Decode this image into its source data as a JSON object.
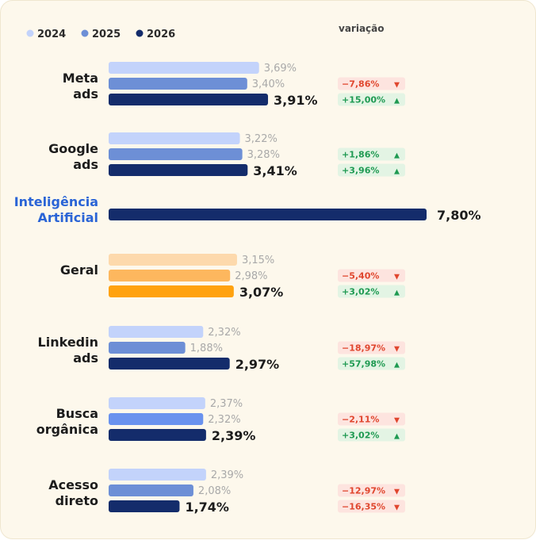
{
  "chart_data": {
    "type": "bar",
    "orientation": "horizontal",
    "legend_position": "top-left",
    "variation_header": "variação",
    "series": [
      {
        "name": "2024",
        "color": "#c3d3fb"
      },
      {
        "name": "2025",
        "color": "#6d8fd6"
      },
      {
        "name": "2026",
        "color": "#142c6b"
      }
    ],
    "groups": [
      {
        "label": [
          "Meta",
          "ads"
        ],
        "values": [
          3.69,
          3.4,
          3.91
        ],
        "value_labels": [
          "3,69%",
          "3,40%",
          "3,91%"
        ],
        "colors": [
          "#c3d3fb",
          "#6d8fd6",
          "#142c6b"
        ],
        "variations": [
          {
            "text": "−7,86%",
            "dir": "down"
          },
          {
            "text": "+15,00%",
            "dir": "up"
          }
        ]
      },
      {
        "label": [
          "Google",
          "ads"
        ],
        "values": [
          3.22,
          3.28,
          3.41
        ],
        "value_labels": [
          "3,22%",
          "3,28%",
          "3,41%"
        ],
        "colors": [
          "#c3d3fb",
          "#6d8fd6",
          "#142c6b"
        ],
        "variations": [
          {
            "text": "+1,86%",
            "dir": "up"
          },
          {
            "text": "+3,96%",
            "dir": "up"
          }
        ]
      },
      {
        "label": [
          "Inteligência",
          "Artificial"
        ],
        "highlight": true,
        "values": [
          7.8
        ],
        "value_labels": [
          "7,80%"
        ],
        "colors": [
          "#142c6b"
        ],
        "variations": []
      },
      {
        "label": [
          "Geral"
        ],
        "values": [
          3.15,
          2.98,
          3.07
        ],
        "value_labels": [
          "3,15%",
          "2,98%",
          "3,07%"
        ],
        "colors": [
          "#fdd9ac",
          "#fdb75e",
          "#ffa20f"
        ],
        "variations": [
          {
            "text": "−5,40%",
            "dir": "down"
          },
          {
            "text": "+3,02%",
            "dir": "up"
          }
        ]
      },
      {
        "label": [
          "Linkedin",
          "ads"
        ],
        "values": [
          2.32,
          1.88,
          2.97
        ],
        "value_labels": [
          "2,32%",
          "1,88%",
          "2,97%"
        ],
        "colors": [
          "#c3d3fb",
          "#6d8fd6",
          "#142c6b"
        ],
        "variations": [
          {
            "text": "−18,97%",
            "dir": "down"
          },
          {
            "text": "+57,98%",
            "dir": "up"
          }
        ]
      },
      {
        "label": [
          "Busca",
          "orgânica"
        ],
        "values": [
          2.37,
          2.32,
          2.39
        ],
        "value_labels": [
          "2,37%",
          "2,32%",
          "2,39%"
        ],
        "colors": [
          "#c3d3fb",
          "#6a92ee",
          "#142c6b"
        ],
        "variations": [
          {
            "text": "−2,11%",
            "dir": "down"
          },
          {
            "text": "+3,02%",
            "dir": "up"
          }
        ]
      },
      {
        "label": [
          "Acesso",
          "direto"
        ],
        "values": [
          2.39,
          2.08,
          1.74
        ],
        "value_labels": [
          "2,39%",
          "2,08%",
          "1,74%"
        ],
        "colors": [
          "#c3d3fb",
          "#6d8fd6",
          "#142c6b"
        ],
        "variations": [
          {
            "text": "−12,97%",
            "dir": "down"
          },
          {
            "text": "−16,35%",
            "dir": "down"
          }
        ]
      }
    ],
    "status_colors": {
      "up_text": "#1f9a52",
      "up_bg": "#e3f4e4",
      "down_text": "#e0462e",
      "down_bg": "#fde4df"
    },
    "glyphs": {
      "up": "▲",
      "down": "▼"
    }
  }
}
